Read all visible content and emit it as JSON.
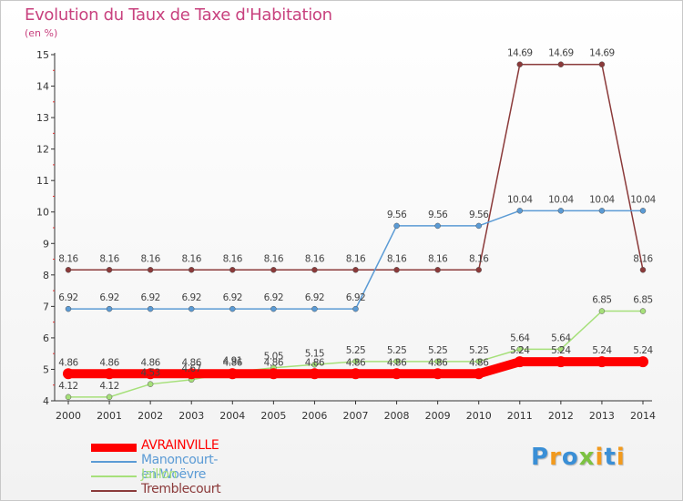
{
  "title": "Evolution du Taux de Taxe d'Habitation",
  "subtitle": "(en %)",
  "brand": {
    "name": "Proxiti",
    "letters": [
      {
        "ch": "P",
        "color": "#3a8fd6"
      },
      {
        "ch": "r",
        "color": "#f29a1d"
      },
      {
        "ch": "o",
        "color": "#3a8fd6"
      },
      {
        "ch": "x",
        "color": "#7cc242"
      },
      {
        "ch": "i",
        "color": "#f29a1d"
      },
      {
        "ch": "t",
        "color": "#3a8fd6"
      },
      {
        "ch": "i",
        "color": "#f29a1d"
      }
    ]
  },
  "chart_data": {
    "type": "line",
    "x": [
      "2000",
      "2001",
      "2002",
      "2003",
      "2004",
      "2005",
      "2006",
      "2007",
      "2008",
      "2009",
      "2010",
      "2011",
      "2012",
      "2013",
      "2014"
    ],
    "ylim": [
      4,
      15
    ],
    "yticks": [
      4,
      5,
      6,
      7,
      8,
      9,
      10,
      11,
      12,
      13,
      14,
      15
    ],
    "grid": false,
    "legend_position": "bottom-left",
    "series": [
      {
        "name": "AVRAINVILLE",
        "color": "#ff0000",
        "width": 10,
        "values": [
          4.86,
          4.86,
          4.86,
          4.86,
          4.86,
          4.86,
          4.86,
          4.86,
          4.86,
          4.86,
          4.86,
          5.24,
          5.24,
          5.24,
          5.24
        ],
        "labels": [
          "4.86",
          "4.86",
          "4.86",
          "4.86",
          "4.86",
          "4.86",
          "4.86",
          "4.86",
          "4.86",
          "4.86",
          "4.86",
          "5.24",
          "5.24",
          "5.24",
          "5.24"
        ]
      },
      {
        "name": "Manoncourt-en-Woëvre",
        "color": "#5b9bd5",
        "width": 1.5,
        "values": [
          6.92,
          6.92,
          6.92,
          6.92,
          6.92,
          6.92,
          6.92,
          6.92,
          9.56,
          9.56,
          9.56,
          10.04,
          10.04,
          10.04,
          10.04
        ],
        "labels": [
          "6.92",
          "6.92",
          "6.92",
          "6.92",
          "6.92",
          "6.92",
          "6.92",
          "6.92",
          "9.56",
          "9.56",
          "9.56",
          "10.04",
          "10.04",
          "10.04",
          "10.04"
        ]
      },
      {
        "name": "Jaillon",
        "color": "#a6e07a",
        "width": 1.5,
        "values": [
          4.12,
          4.12,
          4.53,
          4.67,
          4.91,
          5.05,
          5.15,
          5.25,
          5.25,
          5.25,
          5.25,
          5.64,
          5.64,
          6.85,
          6.85
        ],
        "labels": [
          "4.12",
          "4.12",
          "4.53",
          "4.67",
          "4.91",
          "5.05",
          "5.15",
          "5.25",
          "5.25",
          "5.25",
          "5.25",
          "5.64",
          "5.64",
          "6.85",
          "6.85"
        ]
      },
      {
        "name": "Tremblecourt",
        "color": "#8b3a3a",
        "width": 1.5,
        "values": [
          8.16,
          8.16,
          8.16,
          8.16,
          8.16,
          8.16,
          8.16,
          8.16,
          8.16,
          8.16,
          8.16,
          14.69,
          14.69,
          14.69,
          8.16
        ],
        "labels": [
          "8.16",
          "8.16",
          "8.16",
          "8.16",
          "8.16",
          "8.16",
          "8.16",
          "8.16",
          "8.16",
          "8.16",
          "8.16",
          "14.69",
          "14.69",
          "14.69",
          "8.16"
        ]
      }
    ]
  }
}
